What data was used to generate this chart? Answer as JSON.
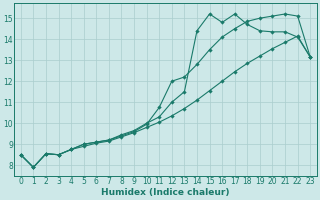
{
  "xlabel": "Humidex (Indice chaleur)",
  "bg_color": "#cde8e8",
  "line_color": "#1a7a6a",
  "grid_color": "#aacece",
  "xlim": [
    -0.5,
    23.5
  ],
  "ylim": [
    7.5,
    15.7
  ],
  "xticks": [
    0,
    1,
    2,
    3,
    4,
    5,
    6,
    7,
    8,
    9,
    10,
    11,
    12,
    13,
    14,
    15,
    16,
    17,
    18,
    19,
    20,
    21,
    22,
    23
  ],
  "yticks": [
    8,
    9,
    10,
    11,
    12,
    13,
    14,
    15
  ],
  "line_straight_x": [
    0,
    1,
    2,
    3,
    4,
    5,
    6,
    7,
    8,
    9,
    10,
    11,
    12,
    13,
    14,
    15,
    16,
    17,
    18,
    19,
    20,
    21,
    22,
    23
  ],
  "line_straight_y": [
    8.5,
    7.9,
    8.55,
    8.5,
    8.75,
    8.9,
    9.05,
    9.15,
    9.35,
    9.55,
    9.8,
    10.05,
    10.35,
    10.7,
    11.1,
    11.55,
    12.0,
    12.45,
    12.85,
    13.2,
    13.55,
    13.85,
    14.15,
    13.15
  ],
  "line_upper_x": [
    0,
    1,
    2,
    3,
    4,
    5,
    6,
    7,
    8,
    9,
    10,
    11,
    12,
    13,
    14,
    15,
    16,
    17,
    18,
    19,
    20,
    21,
    22,
    23
  ],
  "line_upper_y": [
    8.5,
    7.9,
    8.55,
    8.5,
    8.75,
    9.0,
    9.1,
    9.2,
    9.45,
    9.65,
    10.0,
    10.3,
    11.0,
    11.5,
    14.4,
    15.2,
    14.8,
    15.2,
    14.7,
    14.4,
    14.35,
    14.35,
    14.1,
    13.15
  ],
  "line_mid_x": [
    0,
    1,
    2,
    3,
    4,
    5,
    6,
    7,
    8,
    9,
    10,
    11,
    12,
    13,
    14,
    15,
    16,
    17,
    18,
    19,
    20,
    21,
    22,
    23
  ],
  "line_mid_y": [
    8.5,
    7.9,
    8.55,
    8.5,
    8.75,
    9.0,
    9.1,
    9.2,
    9.4,
    9.6,
    9.95,
    10.75,
    12.0,
    12.2,
    12.8,
    13.5,
    14.1,
    14.5,
    14.85,
    15.0,
    15.1,
    15.2,
    15.1,
    13.15
  ]
}
